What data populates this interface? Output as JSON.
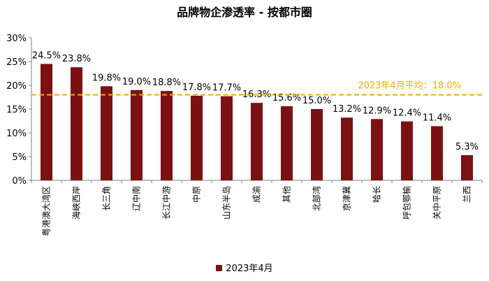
{
  "chart_data": {
    "type": "bar",
    "title": "品牌物企渗透率 - 按都市圈",
    "categories": [
      "粤港澳大湾区",
      "海峡西岸",
      "长三角",
      "辽中南",
      "长江中游",
      "中原",
      "山东半岛",
      "成渝",
      "其他",
      "北部湾",
      "京津冀",
      "哈长",
      "呼包鄂榆",
      "关中平原",
      "兰西"
    ],
    "series": [
      {
        "name": "2023年4月",
        "values": [
          24.5,
          23.8,
          19.8,
          19.0,
          18.8,
          17.8,
          17.7,
          16.3,
          15.6,
          15.0,
          13.2,
          12.9,
          12.4,
          11.4,
          5.3
        ],
        "data_labels": [
          "24.5%",
          "23.8%",
          "19.8%",
          "19.0%",
          "18.8%",
          "17.8%",
          "17.7%",
          "16.3%",
          "15.6%",
          "15.0%",
          "13.2%",
          "12.9%",
          "12.4%",
          "11.4%",
          "5.3%"
        ]
      }
    ],
    "ylim": [
      0,
      30
    ],
    "yticks": [
      "0%",
      "5%",
      "10%",
      "15%",
      "20%",
      "25%",
      "30%"
    ],
    "reference_line": {
      "value": 18.0,
      "label": "2023年4月平均：18.0%",
      "style": "dashed"
    },
    "legend_position": "bottom",
    "grid": false,
    "colors": {
      "bar": "#7b1113",
      "reference": "#f5a800",
      "label_on_line": "#f5a800"
    }
  }
}
